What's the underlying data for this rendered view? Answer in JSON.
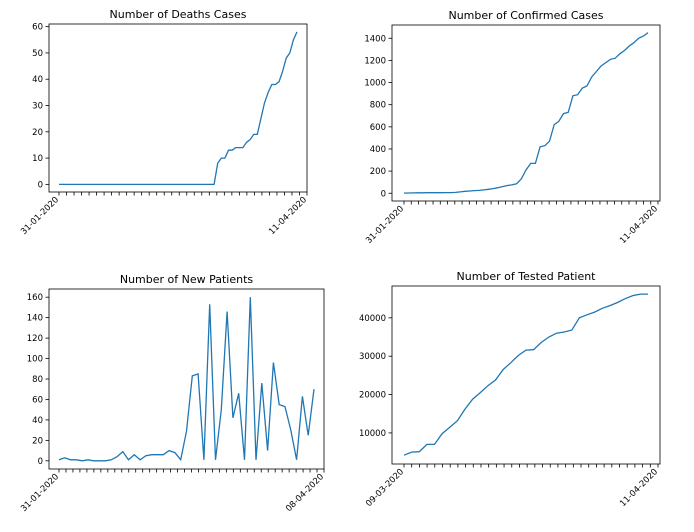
{
  "chart_data": [
    {
      "id": "deaths",
      "type": "line",
      "title": "Number of Deaths Cases",
      "xlabel": "",
      "ylabel": "",
      "ylim": [
        -2.9,
        61
      ],
      "yticks": [
        0,
        10,
        20,
        30,
        40,
        50,
        60
      ],
      "x_tick_labels": [
        "31-01-2020",
        "",
        "",
        "",
        "",
        "",
        "",
        "",
        "",
        "",
        "",
        "",
        "",
        "",
        "",
        "",
        "",
        "",
        "",
        "",
        "",
        "",
        "",
        "",
        "",
        "",
        "",
        "",
        "",
        "",
        "",
        "",
        "",
        "11-04-2020"
      ],
      "color": "#1f77b4",
      "values": [
        0,
        0,
        0,
        0,
        0,
        0,
        0,
        0,
        0,
        0,
        0,
        0,
        0,
        0,
        0,
        0,
        0,
        0,
        0,
        0,
        0,
        0,
        0,
        0,
        0,
        0,
        0,
        0,
        0,
        0,
        0,
        0,
        0,
        0,
        0,
        0,
        0,
        0,
        0,
        0,
        0,
        0,
        0,
        0,
        8,
        10,
        10,
        13,
        13,
        14,
        14,
        14,
        16,
        17,
        19,
        19,
        25,
        31,
        35,
        38,
        38,
        39,
        43,
        48,
        50,
        55,
        58
      ]
    },
    {
      "id": "confirmed",
      "type": "line",
      "title": "Number of Confirmed Cases",
      "xlabel": "",
      "ylabel": "",
      "ylim": [
        -70,
        1520
      ],
      "yticks": [
        0,
        200,
        400,
        600,
        800,
        1000,
        1200,
        1400
      ],
      "x_tick_labels": [
        "31-01-2020",
        "",
        "",
        "",
        "",
        "",
        "",
        "",
        "",
        "",
        "",
        "",
        "",
        "",
        "",
        "",
        "",
        "",
        "",
        "",
        "",
        "",
        "",
        "",
        "",
        "",
        "",
        "",
        "",
        "",
        "",
        "",
        "",
        "",
        "",
        "11-04-2020"
      ],
      "color": "#1f77b4",
      "values": [
        1,
        2,
        3,
        4,
        4,
        5,
        5,
        5,
        5,
        6,
        6,
        8,
        12,
        18,
        20,
        24,
        26,
        30,
        36,
        42,
        50,
        60,
        70,
        75,
        85,
        130,
        210,
        270,
        270,
        420,
        430,
        470,
        620,
        650,
        720,
        730,
        880,
        890,
        950,
        970,
        1050,
        1100,
        1150,
        1180,
        1210,
        1220,
        1260,
        1290,
        1330,
        1360,
        1400,
        1420,
        1450
      ]
    },
    {
      "id": "new-patients",
      "type": "line",
      "title": "Number of New Patients",
      "xlabel": "",
      "ylabel": "",
      "ylim": [
        -8,
        168
      ],
      "yticks": [
        0,
        20,
        40,
        60,
        80,
        100,
        120,
        140,
        160
      ],
      "x_tick_labels": [
        "31-01-2020",
        "",
        "",
        "",
        "",
        "",
        "",
        "",
        "",
        "",
        "",
        "",
        "",
        "",
        "",
        "",
        "",
        "",
        "",
        "",
        "",
        "",
        "",
        "",
        "",
        "",
        "",
        "",
        "",
        "",
        "",
        "",
        "",
        "",
        "",
        "",
        "",
        "",
        "08-04-2020"
      ],
      "color": "#1f77b4",
      "values": [
        1,
        3,
        1,
        1,
        0,
        1,
        0,
        0,
        0,
        1,
        4,
        9,
        1,
        6,
        1,
        5,
        6,
        6,
        6,
        10,
        8,
        1,
        29,
        83,
        85,
        1,
        153,
        1,
        50,
        146,
        42,
        66,
        1,
        160,
        1,
        76,
        10,
        96,
        55,
        53,
        30,
        1,
        63,
        25,
        70
      ]
    },
    {
      "id": "tested",
      "type": "line",
      "title": "Number of Tested Patient",
      "xlabel": "",
      "ylabel": "",
      "ylim": [
        1900,
        48300
      ],
      "yticks": [
        10000,
        20000,
        30000,
        40000
      ],
      "x_tick_labels": [
        "09-03-2020",
        "",
        "",
        "",
        "",
        "",
        "",
        "",
        "",
        "",
        "",
        "",
        "",
        "",
        "",
        "",
        "",
        "",
        "",
        "",
        "",
        "",
        "",
        "",
        "",
        "",
        "",
        "",
        "",
        "",
        "",
        "",
        "",
        "11-04-2020"
      ],
      "color": "#1f77b4",
      "values": [
        4200,
        5000,
        5100,
        7000,
        7000,
        9800,
        11500,
        13200,
        16200,
        18800,
        20500,
        22300,
        23800,
        26500,
        28300,
        30200,
        31600,
        31700,
        33600,
        35000,
        36000,
        36300,
        36800,
        40000,
        40800,
        41500,
        42500,
        43200,
        44000,
        45000,
        45800,
        46200,
        46200
      ]
    }
  ]
}
